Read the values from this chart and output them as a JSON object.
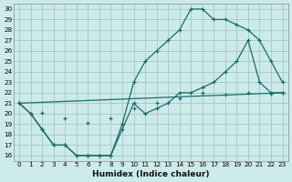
{
  "xlabel": "Humidex (Indice chaleur)",
  "bg_color": "#cceaea",
  "grid_color": "#aacccc",
  "line_color": "#1a6b6b",
  "xlim": [
    -0.5,
    23.5
  ],
  "ylim": [
    15.5,
    30.5
  ],
  "xticks": [
    0,
    1,
    2,
    3,
    4,
    5,
    6,
    7,
    8,
    9,
    10,
    11,
    12,
    13,
    14,
    15,
    16,
    17,
    18,
    19,
    20,
    21,
    22,
    23
  ],
  "yticks": [
    16,
    17,
    18,
    19,
    20,
    21,
    22,
    23,
    24,
    25,
    26,
    27,
    28,
    29,
    30
  ],
  "line1_x": [
    0,
    1,
    2,
    3,
    4,
    5,
    6,
    7,
    8,
    9,
    10,
    11,
    12,
    13,
    14,
    15,
    16,
    17,
    18,
    19,
    20,
    21,
    22,
    23
  ],
  "line1_y": [
    21,
    20,
    18.5,
    17,
    17,
    16,
    16,
    16,
    16,
    18.5,
    21,
    20,
    20.5,
    21,
    22,
    22,
    22.5,
    23,
    24,
    25,
    27,
    23,
    22,
    22
  ],
  "line2_x": [
    0,
    1,
    2,
    3,
    4,
    5,
    6,
    7,
    8,
    9,
    10,
    11,
    12,
    13,
    14,
    15,
    16,
    17,
    18,
    19,
    20,
    21,
    22,
    23
  ],
  "line2_y": [
    21,
    20,
    18.5,
    17,
    17,
    16,
    16,
    16,
    16,
    19,
    23,
    25,
    26,
    27,
    28,
    30,
    30,
    29,
    29,
    28.5,
    28,
    27,
    25,
    23
  ],
  "line3_x": [
    0,
    23
  ],
  "line3_y": [
    21,
    22
  ],
  "line3_markers_x": [
    0,
    2,
    4,
    6,
    8,
    10,
    12,
    14,
    16,
    18,
    20,
    22,
    23
  ],
  "line3_markers_y": [
    21,
    20.1,
    19.6,
    19.1,
    19.6,
    20.5,
    21.0,
    21.5,
    22.0,
    21.8,
    22.0,
    21.9,
    22.0
  ]
}
